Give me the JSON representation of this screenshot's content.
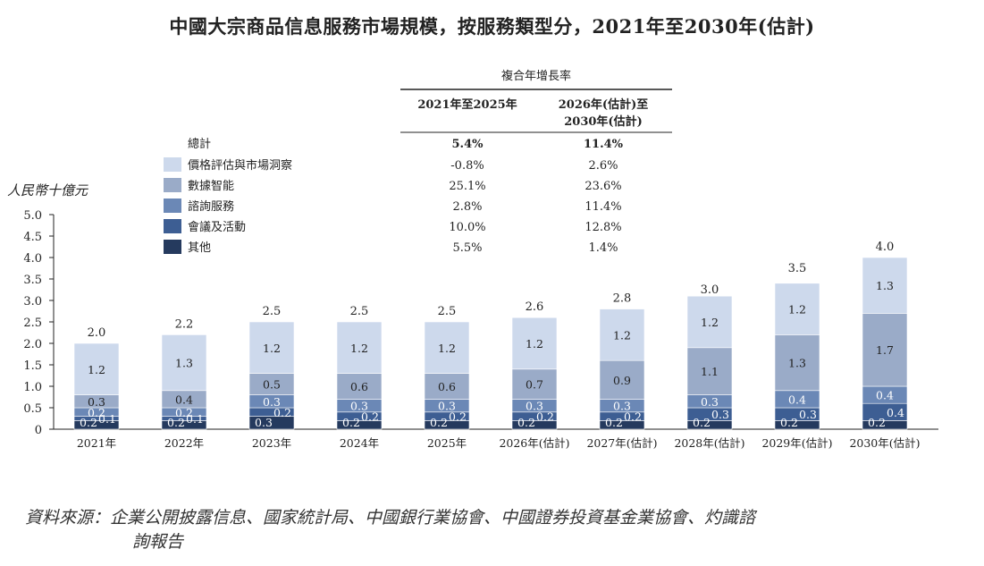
{
  "title": "中國大宗商品信息服務市場規模，按服務類型分，2021年至2030年(估計)",
  "source_label": "資料來源：",
  "source_text_line1": "企業公開披露信息、國家統計局、中國銀行業協會、中國證券投資基金業協會、灼識諮",
  "source_text_line2": "詢報告",
  "cagr_table": {
    "header": "複合年增長率",
    "period1": "2021年至2025年",
    "period2_line1": "2026年(估計)至",
    "period2_line2": "2030年(估計)",
    "total_label": "總計",
    "total": [
      "5.4%",
      "11.4%"
    ],
    "rows": [
      [
        "-0.8%",
        "2.6%"
      ],
      [
        "25.1%",
        "23.6%"
      ],
      [
        "2.8%",
        "11.4%"
      ],
      [
        "10.0%",
        "12.8%"
      ],
      [
        "5.5%",
        "1.4%"
      ]
    ]
  },
  "chart_data": {
    "type": "bar",
    "stacked": true,
    "ylabel": "人民幣十億元",
    "ylim": [
      0,
      5.0
    ],
    "yticks": [
      "0",
      "0.5",
      "1.0",
      "1.5",
      "2.0",
      "2.5",
      "3.0",
      "3.5",
      "4.0",
      "4.5",
      "5.0"
    ],
    "categories": [
      "2021年",
      "2022年",
      "2023年",
      "2024年",
      "2025年",
      "2026年(估計)",
      "2027年(估計)",
      "2028年(估計)",
      "2029年(估計)",
      "2030年(估計)"
    ],
    "totals": [
      2.0,
      2.2,
      2.5,
      2.5,
      2.5,
      2.6,
      2.8,
      3.0,
      3.5,
      4.0
    ],
    "total_labels": [
      "2.0",
      "2.2",
      "2.5",
      "2.5",
      "2.5",
      "2.6",
      "2.8",
      "3.0",
      "3.5",
      "4.0"
    ],
    "series": [
      {
        "name": "其他",
        "color": "#253a5e",
        "values": [
          0.2,
          0.2,
          0.3,
          0.2,
          0.2,
          0.2,
          0.2,
          0.2,
          0.2,
          0.2
        ],
        "labels": [
          "0.2",
          "0.2",
          "0.3",
          "0.2",
          "0.2",
          "0.2",
          "0.2",
          "0.2",
          "0.2",
          "0.2"
        ]
      },
      {
        "name": "會議及活動",
        "color": "#3d5e93",
        "values": [
          0.1,
          0.1,
          0.2,
          0.2,
          0.2,
          0.2,
          0.2,
          0.3,
          0.3,
          0.4
        ],
        "labels": [
          "0.1",
          "0.1",
          "0.2",
          "0.2",
          "0.2",
          "0.2",
          "0.2",
          "0.3",
          "0.3",
          "0.4"
        ]
      },
      {
        "name": "諮詢服務",
        "color": "#6b88b6",
        "values": [
          0.2,
          0.2,
          0.3,
          0.3,
          0.3,
          0.3,
          0.3,
          0.3,
          0.4,
          0.4
        ],
        "labels": [
          "0.2",
          "0.2",
          "0.3",
          "0.3",
          "0.3",
          "0.3",
          "0.3",
          "0.3",
          "0.4",
          "0.4"
        ]
      },
      {
        "name": "數據智能",
        "color": "#9aabc8",
        "values": [
          0.3,
          0.4,
          0.5,
          0.6,
          0.6,
          0.7,
          0.9,
          1.1,
          1.3,
          1.7
        ],
        "labels": [
          "0.3",
          "0.4",
          "0.5",
          "0.6",
          "0.6",
          "0.7",
          "0.9",
          "1.1",
          "1.3",
          "1.7"
        ]
      },
      {
        "name": "價格評估與市場洞察",
        "color": "#cdd9ec",
        "values": [
          1.2,
          1.3,
          1.2,
          1.2,
          1.2,
          1.2,
          1.2,
          1.2,
          1.2,
          1.3
        ],
        "labels": [
          "1.2",
          "1.3",
          "1.2",
          "1.2",
          "1.2",
          "1.2",
          "1.2",
          "1.2",
          "1.2",
          "1.3"
        ]
      }
    ],
    "legend_order": [
      "價格評估與市場洞察",
      "數據智能",
      "諮詢服務",
      "會議及活動",
      "其他"
    ],
    "legend_placement": "top-left",
    "grid": false
  }
}
